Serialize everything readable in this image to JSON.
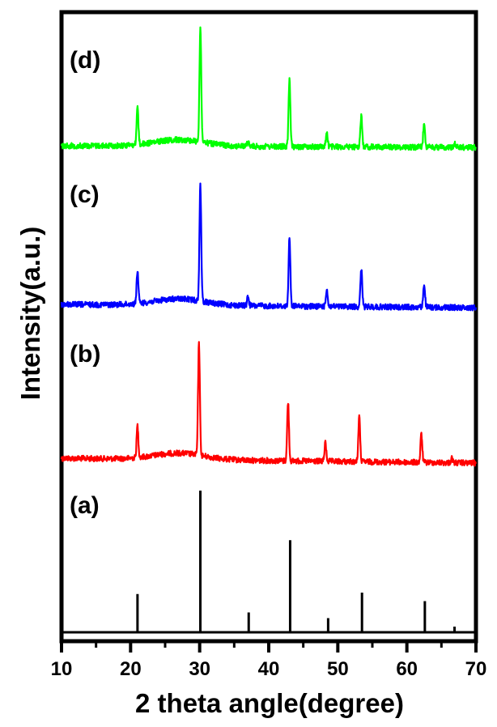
{
  "chart_data": {
    "type": "line",
    "title": "",
    "xlabel": "2 theta angle(degree)",
    "ylabel": "Intensity(a.u.)",
    "xlim": [
      10,
      70
    ],
    "x_ticks": [
      10,
      20,
      30,
      40,
      50,
      60,
      70
    ],
    "x_minor_ticks": [
      15,
      25,
      35,
      45,
      55,
      65
    ],
    "y_ticks": [],
    "grid": false,
    "legend": "panel labels at left of each trace",
    "stacked_offset": true,
    "series": [
      {
        "name": "(a)",
        "label": "(a)",
        "style": "stick",
        "color": "#000000",
        "baseline": 0,
        "peaks": [
          {
            "two_theta": 21.0,
            "intensity": 27
          },
          {
            "two_theta": 30.1,
            "intensity": 100
          },
          {
            "two_theta": 37.1,
            "intensity": 14
          },
          {
            "two_theta": 43.1,
            "intensity": 65
          },
          {
            "two_theta": 48.6,
            "intensity": 10
          },
          {
            "two_theta": 53.5,
            "intensity": 28
          },
          {
            "two_theta": 62.6,
            "intensity": 22
          },
          {
            "two_theta": 66.9,
            "intensity": 4
          }
        ]
      },
      {
        "name": "(b)",
        "label": "(b)",
        "style": "noisy-line",
        "color": "#ff0000",
        "baseline_start": 54,
        "baseline_end": 56,
        "peaks": [
          {
            "two_theta": 21.0,
            "intensity": 28
          },
          {
            "two_theta": 29.9,
            "intensity": 100
          },
          {
            "two_theta": 42.8,
            "intensity": 52
          },
          {
            "two_theta": 48.2,
            "intensity": 16
          },
          {
            "two_theta": 53.1,
            "intensity": 40
          },
          {
            "two_theta": 62.1,
            "intensity": 25
          },
          {
            "two_theta": 66.5,
            "intensity": 4
          }
        ]
      },
      {
        "name": "(c)",
        "label": "(c)",
        "style": "noisy-line",
        "color": "#0000ff",
        "baseline_start": 62,
        "baseline_end": 63,
        "peaks": [
          {
            "two_theta": 21.0,
            "intensity": 28
          },
          {
            "two_theta": 30.1,
            "intensity": 100
          },
          {
            "two_theta": 37.0,
            "intensity": 8
          },
          {
            "two_theta": 43.0,
            "intensity": 58
          },
          {
            "two_theta": 48.4,
            "intensity": 15
          },
          {
            "two_theta": 53.4,
            "intensity": 32
          },
          {
            "two_theta": 62.5,
            "intensity": 20
          }
        ]
      },
      {
        "name": "(d)",
        "label": "(d)",
        "style": "noisy-line",
        "color": "#00ff00",
        "baseline_start": 63,
        "baseline_end": 63,
        "peaks": [
          {
            "two_theta": 21.0,
            "intensity": 33
          },
          {
            "two_theta": 30.1,
            "intensity": 100
          },
          {
            "two_theta": 37.0,
            "intensity": 4
          },
          {
            "two_theta": 43.0,
            "intensity": 58
          },
          {
            "two_theta": 48.4,
            "intensity": 12
          },
          {
            "two_theta": 53.4,
            "intensity": 27
          },
          {
            "two_theta": 62.5,
            "intensity": 22
          },
          {
            "two_theta": 66.9,
            "intensity": 3
          }
        ]
      }
    ]
  },
  "labels": {
    "panel_a": "(a)",
    "panel_b": "(b)",
    "panel_c": "(c)",
    "panel_d": "(d)",
    "x_axis_title": "2 theta angle(degree)",
    "y_axis_title": "Intensity(a.u.)",
    "x_ticks": [
      "10",
      "20",
      "30",
      "40",
      "50",
      "60",
      "70"
    ]
  },
  "colors": {
    "frame": "#000000",
    "trace_a": "#000000",
    "trace_b": "#ff0000",
    "trace_c": "#0000ff",
    "trace_d": "#00ff00"
  }
}
